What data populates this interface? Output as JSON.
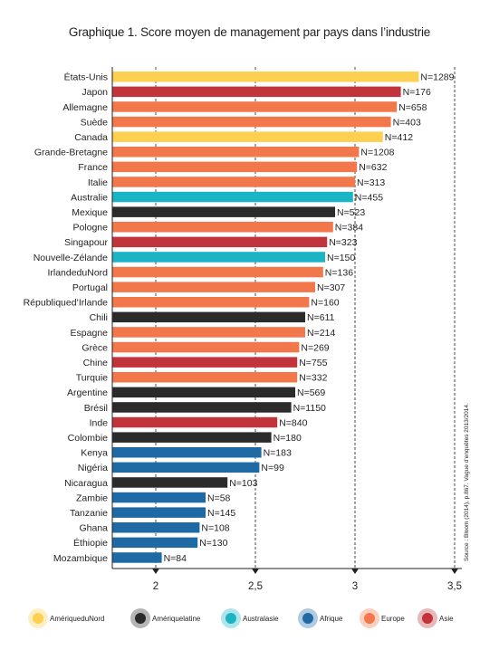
{
  "chart_data": {
    "type": "bar",
    "orientation": "horizontal",
    "title": "Graphique 1. Score moyen de management par pays dans l’industrie",
    "source": "Source : Bloom (2014), p.867. Vague d’enquêtes 2013/2014.",
    "xlim": [
      1.8,
      3.55
    ],
    "xticks": [
      2,
      2.5,
      3,
      3.5
    ],
    "xtick_labels": [
      "2",
      "2,5",
      "3",
      "3,5"
    ],
    "grid": "vertical dashed at ticks",
    "legend_position": "bottom",
    "regions": [
      {
        "key": "amn",
        "name": "AmériqueduNord",
        "color": "#fdd052"
      },
      {
        "key": "aml",
        "name": "Amériquelatine",
        "color": "#2b2b2b"
      },
      {
        "key": "aus",
        "name": "Australasie",
        "color": "#1bb4c5"
      },
      {
        "key": "afr",
        "name": "Afrique",
        "color": "#1f6aa5"
      },
      {
        "key": "eur",
        "name": "Europe",
        "color": "#f2774a"
      },
      {
        "key": "asi",
        "name": "Asie",
        "color": "#c1343b"
      }
    ],
    "categories": [
      "États-Unis",
      "Japon",
      "Allemagne",
      "Suède",
      "Canada",
      "Grande-Bretagne",
      "France",
      "Italie",
      "Australie",
      "Mexique",
      "Pologne",
      "Singapour",
      "Nouvelle-Zélande",
      "IrlandeduNord",
      "Portugal",
      "Républiqued’Irlande",
      "Chili",
      "Espagne",
      "Grèce",
      "Chine",
      "Turquie",
      "Argentine",
      "Brésil",
      "Inde",
      "Colombie",
      "Kenya",
      "Nigéria",
      "Nicaragua",
      "Zambie",
      "Tanzanie",
      "Ghana",
      "Éthiopie",
      "Mozambique"
    ],
    "values": [
      3.32,
      3.23,
      3.21,
      3.18,
      3.14,
      3.02,
      3.01,
      3.0,
      2.99,
      2.9,
      2.89,
      2.86,
      2.85,
      2.84,
      2.8,
      2.77,
      2.75,
      2.75,
      2.72,
      2.71,
      2.71,
      2.7,
      2.68,
      2.61,
      2.58,
      2.53,
      2.52,
      2.36,
      2.25,
      2.25,
      2.22,
      2.21,
      2.03
    ],
    "n_labels": [
      "N=1289",
      "N=176",
      "N=658",
      "N=403",
      "N=412",
      "N=1208",
      "N=632",
      "N=313",
      "N=455",
      "N=523",
      "N=384",
      "N=323",
      "N=150",
      "N=136",
      "N=307",
      "N=160",
      "N=611",
      "N=214",
      "N=269",
      "N=755",
      "N=332",
      "N=569",
      "N=1150",
      "N=840",
      "N=180",
      "N=183",
      "N=99",
      "N=103",
      "N=58",
      "N=145",
      "N=108",
      "N=130",
      "N=84"
    ],
    "region_of": [
      "amn",
      "asi",
      "eur",
      "eur",
      "amn",
      "eur",
      "eur",
      "eur",
      "aus",
      "aml",
      "eur",
      "asi",
      "aus",
      "eur",
      "eur",
      "eur",
      "aml",
      "eur",
      "eur",
      "asi",
      "eur",
      "aml",
      "aml",
      "asi",
      "aml",
      "afr",
      "afr",
      "aml",
      "afr",
      "afr",
      "afr",
      "afr",
      "afr"
    ]
  }
}
